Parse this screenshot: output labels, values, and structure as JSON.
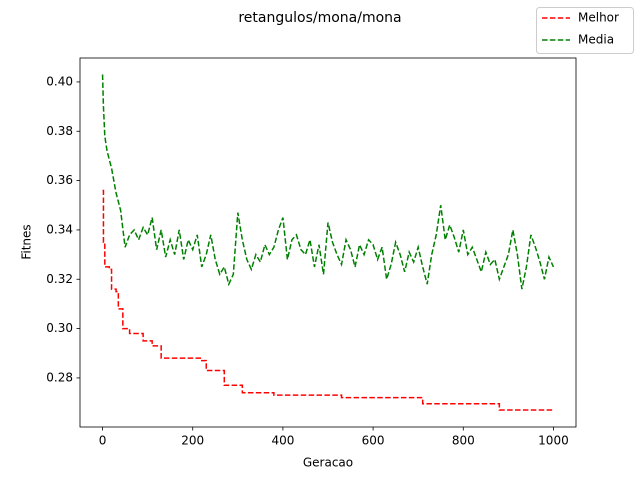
{
  "chart_data": {
    "type": "line",
    "title": "retangulos/mona/mona",
    "xlabel": "Geracao",
    "ylabel": "Fitnes",
    "xlim": [
      -50,
      1050
    ],
    "ylim": [
      0.2601,
      0.4097
    ],
    "xticks": [
      0,
      200,
      400,
      600,
      800,
      1000
    ],
    "yticks": [
      0.28,
      {
        "value": 0.3,
        "label": "0.30"
      },
      0.32,
      0.34,
      0.36,
      0.38,
      {
        "value": 0.4,
        "label": "0.40"
      }
    ],
    "grid": false,
    "legend": "upper right outside",
    "series": [
      {
        "name": "Melhor",
        "color": "#ff0000",
        "x": [
          0,
          2,
          2,
          5,
          5,
          15,
          15,
          20,
          20,
          30,
          30,
          35,
          35,
          45,
          45,
          60,
          60,
          90,
          90,
          110,
          110,
          130,
          130,
          220,
          220,
          230,
          230,
          270,
          270,
          310,
          310,
          380,
          380,
          530,
          530,
          710,
          710,
          880,
          880,
          1000
        ],
        "values": [
          0.356,
          0.356,
          0.335,
          0.335,
          0.325,
          0.325,
          0.324,
          0.324,
          0.316,
          0.316,
          0.315,
          0.315,
          0.308,
          0.308,
          0.3,
          0.3,
          0.298,
          0.298,
          0.295,
          0.295,
          0.293,
          0.293,
          0.288,
          0.288,
          0.287,
          0.287,
          0.283,
          0.283,
          0.277,
          0.277,
          0.274,
          0.274,
          0.273,
          0.273,
          0.272,
          0.272,
          0.2695,
          0.2695,
          0.267,
          0.267
        ]
      },
      {
        "name": "Media",
        "color": "#008000",
        "x": [
          0,
          2,
          5,
          10,
          20,
          30,
          40,
          50,
          60,
          70,
          80,
          90,
          100,
          110,
          120,
          130,
          140,
          150,
          160,
          170,
          180,
          190,
          200,
          210,
          220,
          230,
          240,
          250,
          260,
          270,
          280,
          290,
          300,
          310,
          320,
          330,
          340,
          350,
          360,
          370,
          380,
          390,
          400,
          410,
          420,
          430,
          440,
          450,
          460,
          470,
          480,
          490,
          500,
          510,
          520,
          530,
          540,
          550,
          560,
          570,
          580,
          590,
          600,
          610,
          620,
          630,
          640,
          650,
          660,
          670,
          680,
          690,
          700,
          710,
          720,
          730,
          740,
          750,
          760,
          770,
          780,
          790,
          800,
          810,
          820,
          830,
          840,
          850,
          860,
          870,
          880,
          890,
          900,
          910,
          920,
          930,
          940,
          950,
          960,
          970,
          980,
          990,
          1000
        ],
        "values": [
          0.403,
          0.39,
          0.378,
          0.372,
          0.365,
          0.355,
          0.348,
          0.333,
          0.338,
          0.34,
          0.336,
          0.341,
          0.338,
          0.345,
          0.332,
          0.34,
          0.329,
          0.336,
          0.33,
          0.34,
          0.328,
          0.336,
          0.332,
          0.338,
          0.325,
          0.33,
          0.338,
          0.328,
          0.322,
          0.325,
          0.318,
          0.322,
          0.347,
          0.336,
          0.328,
          0.324,
          0.33,
          0.327,
          0.334,
          0.33,
          0.333,
          0.34,
          0.345,
          0.328,
          0.336,
          0.338,
          0.332,
          0.33,
          0.336,
          0.325,
          0.334,
          0.322,
          0.343,
          0.335,
          0.33,
          0.326,
          0.336,
          0.332,
          0.325,
          0.334,
          0.33,
          0.336,
          0.334,
          0.328,
          0.333,
          0.32,
          0.326,
          0.335,
          0.33,
          0.323,
          0.331,
          0.327,
          0.333,
          0.325,
          0.318,
          0.33,
          0.338,
          0.35,
          0.336,
          0.342,
          0.337,
          0.331,
          0.34,
          0.33,
          0.333,
          0.328,
          0.323,
          0.331,
          0.326,
          0.328,
          0.32,
          0.325,
          0.33,
          0.34,
          0.33,
          0.316,
          0.325,
          0.338,
          0.333,
          0.327,
          0.32,
          0.329,
          0.325
        ]
      }
    ]
  }
}
